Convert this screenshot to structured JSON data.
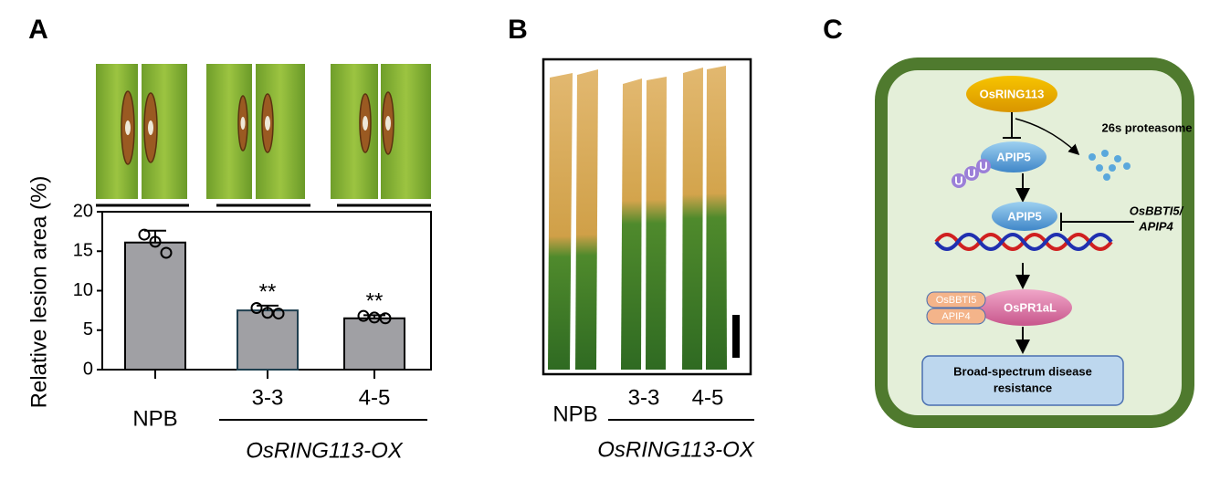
{
  "panel_labels": [
    "A",
    "B",
    "C"
  ],
  "chart_data": {
    "type": "bar",
    "ylabel": "Relative lesion area (%)",
    "categories": [
      "NPB",
      "3-3",
      "4-5"
    ],
    "values": [
      16.1,
      7.5,
      6.5
    ],
    "errors": [
      1.5,
      0.6,
      0.4
    ],
    "points": [
      [
        17.1,
        16.2,
        14.8
      ],
      [
        7.8,
        7.2,
        7.1
      ],
      [
        6.8,
        6.6,
        6.5
      ]
    ],
    "significance": [
      null,
      "**",
      "**"
    ],
    "group_label": "OsRING113-OX",
    "color": "#a0a0a4",
    "edgecolors": [
      "#000000",
      "#1f3f4f",
      "#000000"
    ],
    "ylim": [
      0,
      20
    ],
    "yticks": [
      0,
      5,
      10,
      15,
      20
    ]
  },
  "panel_b": {
    "categories": [
      "NPB",
      "3-3",
      "4-5"
    ],
    "group_label": "OsRING113-OX"
  },
  "diagram": {
    "nodes": {
      "ring": "OsRING113",
      "proteasome": "26s proteasome",
      "ubiquitin": [
        "U",
        "U",
        "U"
      ],
      "apip5_a": "APIP5",
      "apip5_b": "APIP5",
      "inhibitor": [
        "OsBBTI5/",
        "APIP4"
      ],
      "bbti5": "OsBBTI5",
      "apip4": "APIP4",
      "pr1al": "OsPR1aL",
      "outcome": [
        "Broad-spectrum disease",
        "resistance"
      ]
    }
  }
}
